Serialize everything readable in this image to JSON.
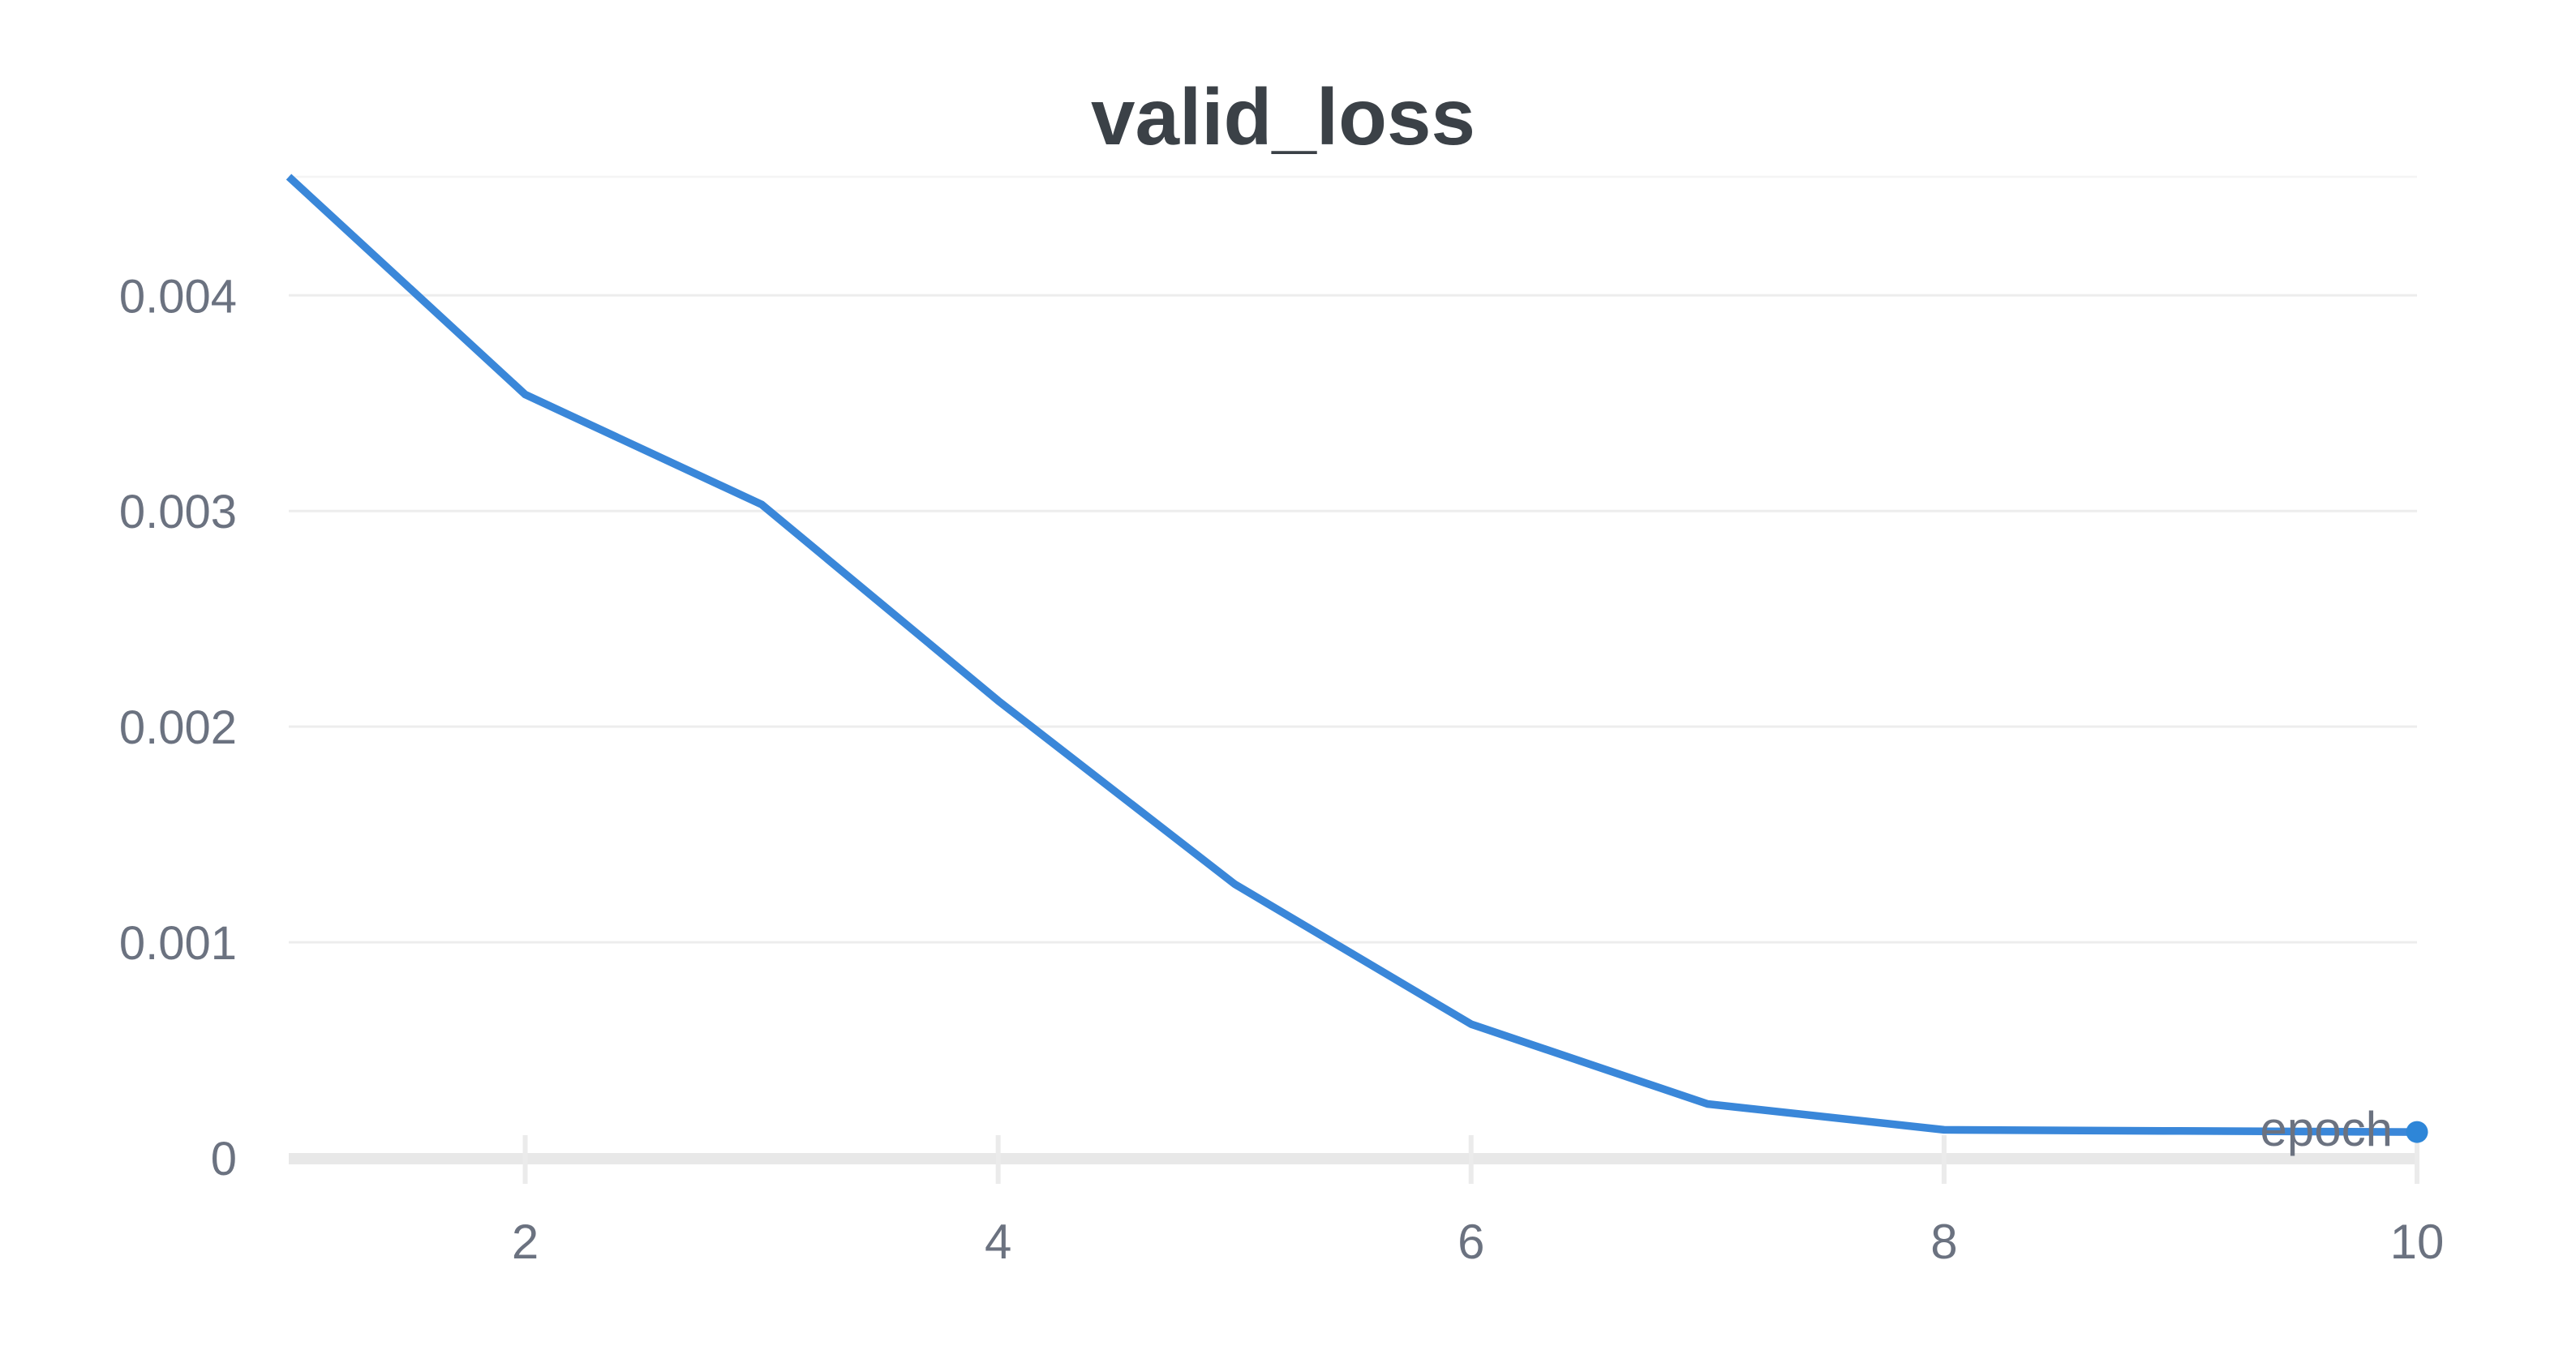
{
  "chart_data": {
    "type": "line",
    "title": "valid_loss",
    "series_name": "valid_loss",
    "xlabel": "epoch",
    "x": [
      1,
      2,
      3,
      4,
      5,
      6,
      7,
      8,
      9,
      10
    ],
    "y": [
      0.00455,
      0.00354,
      0.00303,
      0.00212,
      0.00127,
      0.00062,
      0.00025,
      0.00013,
      0.000125,
      0.00012
    ],
    "x_ticks": [
      2,
      4,
      6,
      8,
      10
    ],
    "x_tick_labels": [
      "2",
      "4",
      "6",
      "8",
      "10"
    ],
    "y_ticks": [
      0,
      0.001,
      0.002,
      0.003,
      0.004
    ],
    "y_tick_labels": [
      "0",
      "0.001",
      "0.002",
      "0.003",
      "0.004"
    ],
    "xlim": [
      1,
      10
    ],
    "ylim": [
      0,
      0.00455
    ],
    "grid": "horizontal-only",
    "legend": "none",
    "end_point_marker": true,
    "colors": {
      "line": "#3a87d9",
      "marker": "#2e86d8",
      "gridline": "#ededed",
      "plot_top_border": "#f4f4f4",
      "axis_band": "#e8e8e8",
      "tick_mark": "#ebebeb",
      "tick_text": "#6b7280",
      "title_text": "#3b4147",
      "background": "#ffffff"
    }
  }
}
